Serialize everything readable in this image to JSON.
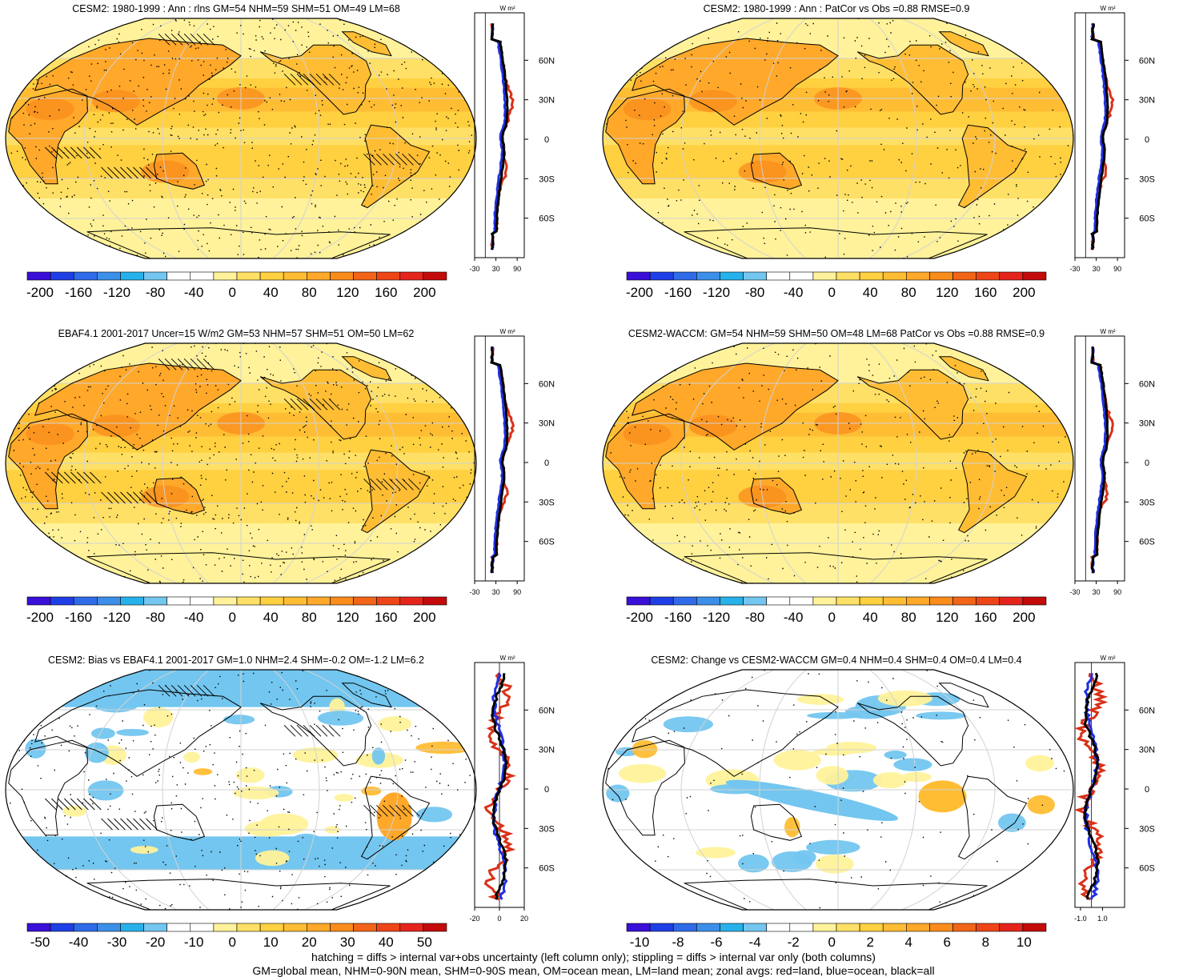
{
  "panels": [
    {
      "id": "cesm2-climatology",
      "title": "CESM2: 1980-1999 : Ann : rlns GM=54 NHM=59 SHM=51 OM=49 LM=68",
      "map": {
        "palette": "warm",
        "hatching": true,
        "stippling": "dense"
      },
      "colorbar": {
        "labels": [
          "-200",
          "-160",
          "-120",
          "-80",
          "-40",
          "0",
          "40",
          "80",
          "120",
          "160",
          "200"
        ],
        "range": [
          -200,
          200
        ]
      },
      "zonal": {
        "units": "W m²",
        "xticks": [
          "-30",
          "30",
          "90"
        ],
        "xrange": [
          -30,
          110
        ],
        "latticks": [
          "60N",
          "30N",
          "0",
          "30S",
          "60S"
        ]
      }
    },
    {
      "id": "cesm2-patcor",
      "title": "CESM2: 1980-1999 : Ann : PatCor vs Obs =0.88 RMSE=0.9",
      "map": {
        "palette": "warm",
        "hatching": false,
        "stippling": "medium"
      },
      "colorbar": {
        "labels": [
          "-200",
          "-160",
          "-120",
          "-80",
          "-40",
          "0",
          "40",
          "80",
          "120",
          "160",
          "200"
        ],
        "range": [
          -200,
          200
        ]
      },
      "zonal": {
        "units": "W m²",
        "xticks": [
          "-30",
          "30",
          "90"
        ],
        "xrange": [
          -30,
          110
        ],
        "latticks": [
          "60N",
          "30N",
          "0",
          "30S",
          "60S"
        ]
      }
    },
    {
      "id": "ebaf-obs",
      "title": "EBAF4.1 2001-2017 Uncer=15 W/m2 GM=53 NHM=57 SHM=51 OM=50 LM=62",
      "map": {
        "palette": "warm",
        "hatching": true,
        "stippling": "dense"
      },
      "colorbar": {
        "labels": [
          "-200",
          "-160",
          "-120",
          "-80",
          "-40",
          "0",
          "40",
          "80",
          "120",
          "160",
          "200"
        ],
        "range": [
          -200,
          200
        ]
      },
      "zonal": {
        "units": "W m²",
        "xticks": [
          "-30",
          "30",
          "90"
        ],
        "xrange": [
          -30,
          110
        ],
        "latticks": [
          "60N",
          "30N",
          "0",
          "30S",
          "60S"
        ]
      }
    },
    {
      "id": "cesm2-waccm",
      "title": "CESM2-WACCM: GM=54 NHM=59 SHM=50 OM=48 LM=68 PatCor vs Obs =0.88 RMSE=0.9",
      "map": {
        "palette": "warm",
        "hatching": false,
        "stippling": "medium"
      },
      "colorbar": {
        "labels": [
          "-200",
          "-160",
          "-120",
          "-80",
          "-40",
          "0",
          "40",
          "80",
          "120",
          "160",
          "200"
        ],
        "range": [
          -200,
          200
        ]
      },
      "zonal": {
        "units": "W m²",
        "xticks": [
          "-30",
          "30",
          "90"
        ],
        "xrange": [
          -30,
          110
        ],
        "latticks": [
          "60N",
          "30N",
          "0",
          "30S",
          "60S"
        ]
      }
    },
    {
      "id": "cesm2-bias",
      "title": "CESM2: Bias vs EBAF4.1 2001-2017 GM=1.0 NHM=2.4 SHM=-0.2 OM=-1.2 LM=6.2",
      "map": {
        "palette": "diverging",
        "hatching": true,
        "stippling": "medium"
      },
      "colorbar": {
        "labels": [
          "-50",
          "-40",
          "-30",
          "-20",
          "-10",
          "0",
          "10",
          "20",
          "30",
          "40",
          "50"
        ],
        "range": [
          -50,
          50
        ]
      },
      "zonal": {
        "units": "W m²",
        "xticks": [
          "-20",
          "0",
          "20"
        ],
        "xrange": [
          -20,
          20
        ],
        "latticks": [
          "60N",
          "30N",
          "0",
          "30S",
          "60S"
        ]
      }
    },
    {
      "id": "cesm2-change",
      "title": "CESM2: Change vs CESM2-WACCM GM=0.4 NHM=0.4 SHM=0.4 OM=0.4 LM=0.4",
      "map": {
        "palette": "diverging",
        "hatching": false,
        "stippling": "sparse"
      },
      "colorbar": {
        "labels": [
          "-10",
          "-8",
          "-6",
          "-4",
          "-2",
          "0",
          "2",
          "4",
          "6",
          "8",
          "10"
        ],
        "range": [
          -10,
          10
        ]
      },
      "zonal": {
        "units": "W m²",
        "xticks": [
          "-1.0",
          "1.0"
        ],
        "xrange": [
          -1.5,
          3.0
        ],
        "latticks": [
          "60N",
          "30N",
          "0",
          "30S",
          "60S"
        ]
      }
    }
  ],
  "colors": {
    "warm": [
      "#3a0fd8",
      "#1f3fe6",
      "#2f6be8",
      "#3c8fe8",
      "#27b1ea",
      "#73c6ef",
      "#ffffff",
      "#ffffff",
      "#fff29a",
      "#ffe066",
      "#ffd040",
      "#ffbd34",
      "#ffa82a",
      "#fa8c1c",
      "#f26417",
      "#ee4518",
      "#e5241c",
      "#c40b0b"
    ],
    "diverging": [
      "#3a0fd8",
      "#1f3fe6",
      "#2f6be8",
      "#3c8fe8",
      "#27b1ea",
      "#73c6ef",
      "#ffffff",
      "#ffffff",
      "#fff29a",
      "#ffe066",
      "#ffd040",
      "#ffbd34",
      "#ffa82a",
      "#fa8c1c",
      "#f26417",
      "#ee4518",
      "#e5241c",
      "#c40b0b"
    ],
    "land_line": "#d93118",
    "ocean_line": "#1f2fe0",
    "all_line": "#000000"
  },
  "footer": {
    "line1": "hatching = diffs > internal var+obs uncertainty (left column only); stippling = diffs > internal var only (both columns)",
    "line2": "GM=global mean, NHM=0-90N mean, SHM=0-90S mean, OM=ocean mean, LM=land mean; zonal avgs: red=land, blue=ocean, black=all"
  }
}
